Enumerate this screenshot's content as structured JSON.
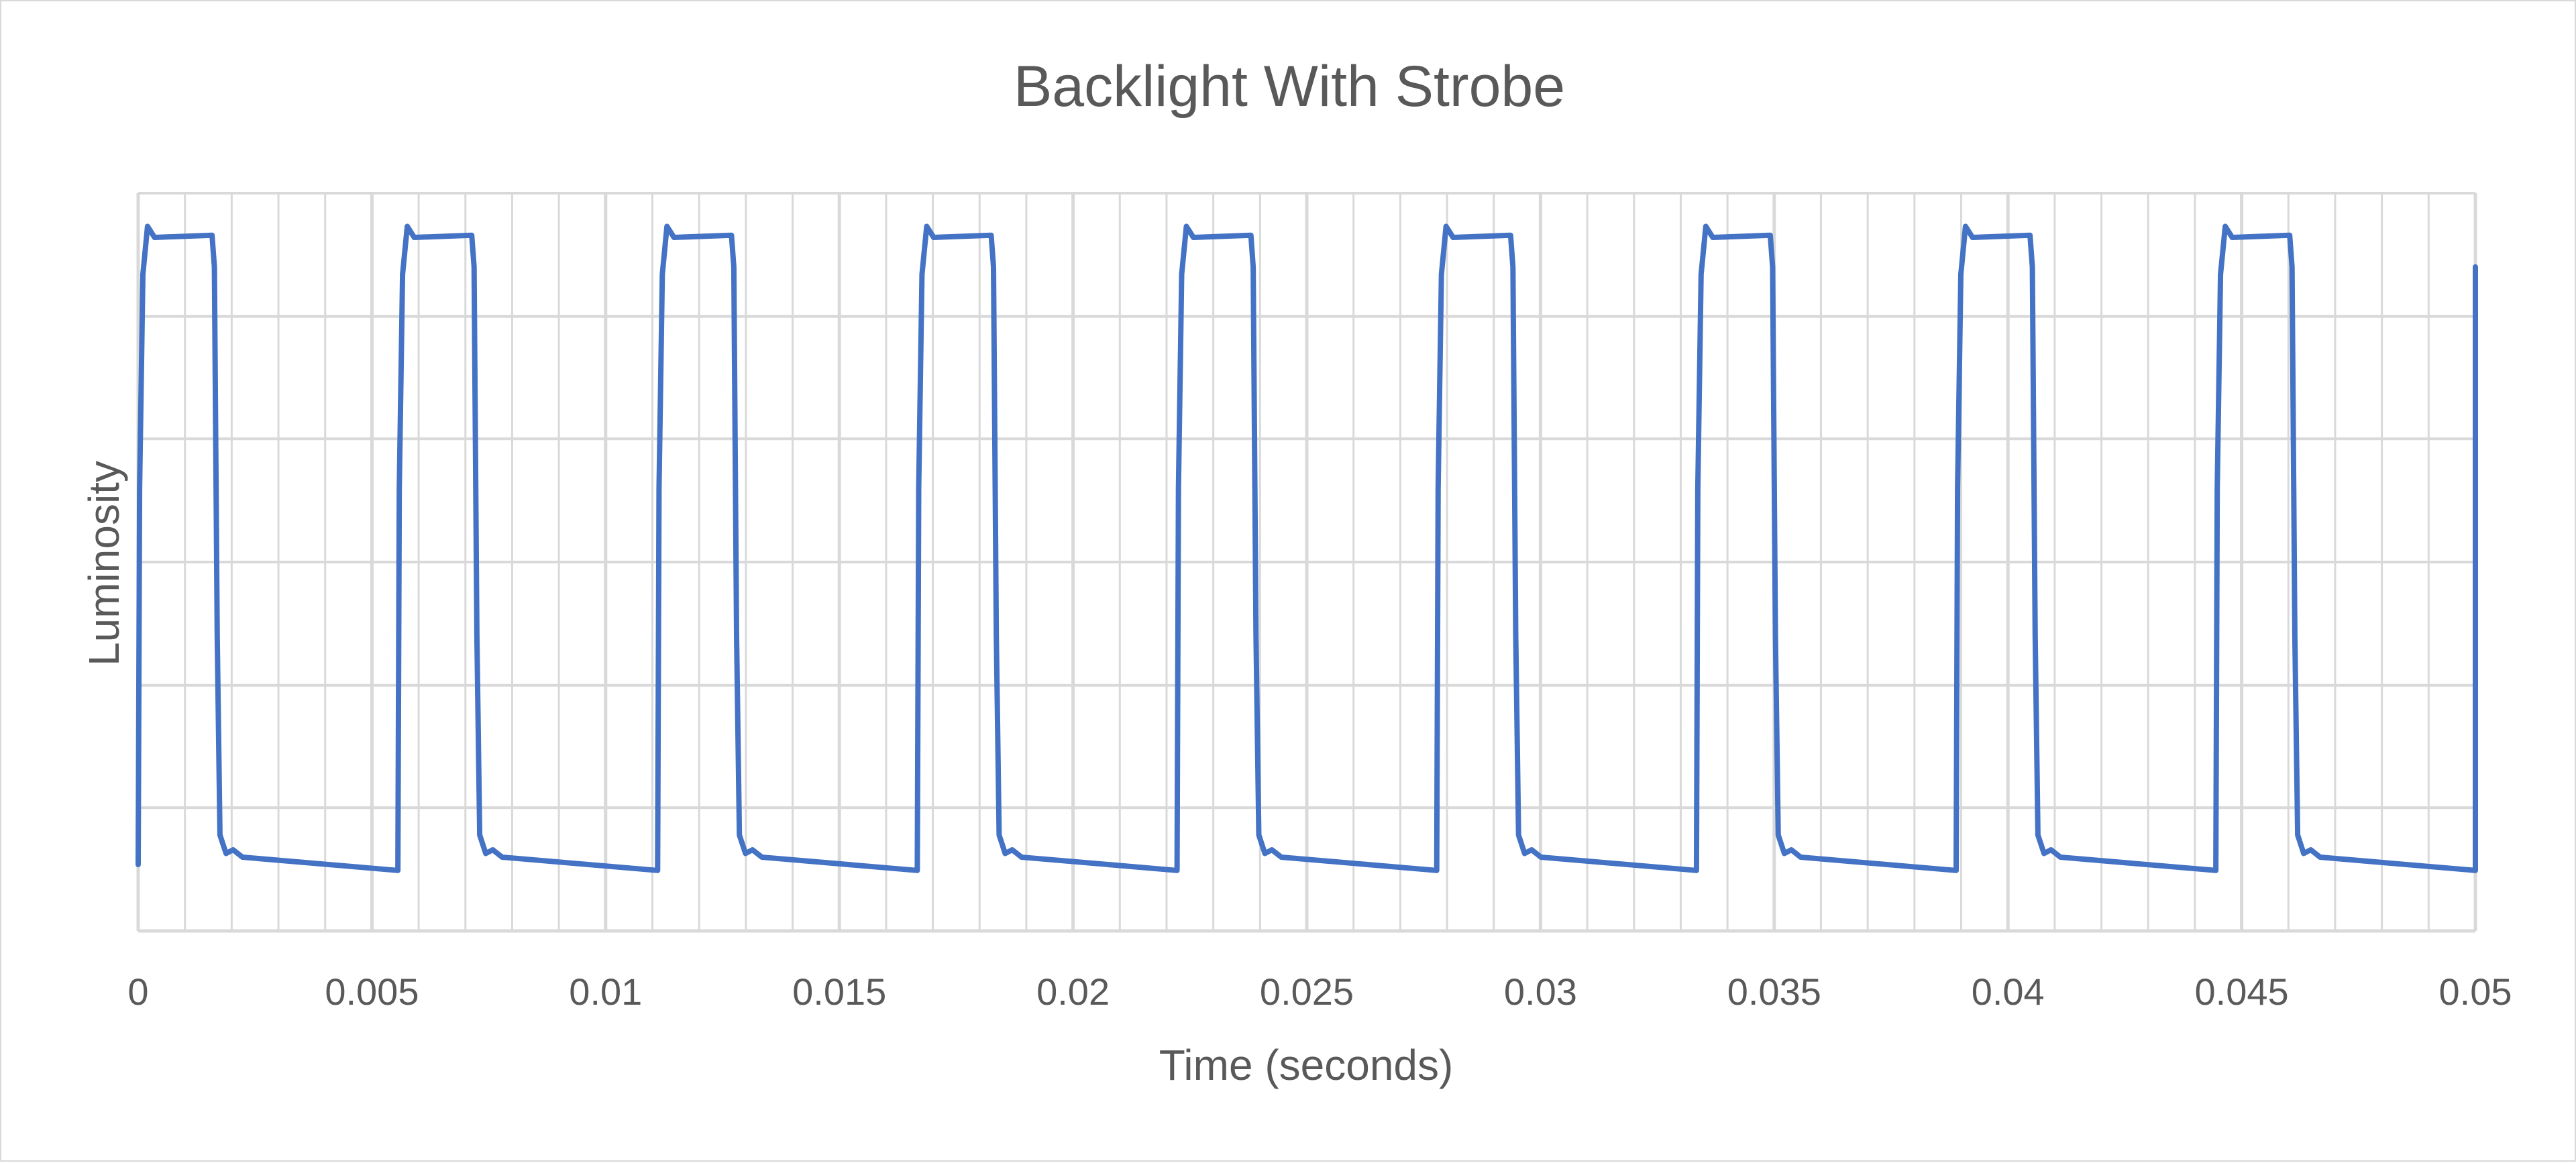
{
  "chart_data": {
    "type": "line",
    "title": "Backlight With Strobe",
    "xlabel": "Time (seconds)",
    "ylabel": "Luminosity",
    "xlim": [
      0,
      0.05
    ],
    "ylim": [
      0,
      1
    ],
    "x_major_ticks": [
      0,
      0.005,
      0.01,
      0.015,
      0.02,
      0.025,
      0.03,
      0.035,
      0.04,
      0.045,
      0.05
    ],
    "x_tick_labels": [
      "0",
      "0.005",
      "0.01",
      "0.015",
      "0.02",
      "0.025",
      "0.03",
      "0.035",
      "0.04",
      "0.045",
      "0.05"
    ],
    "x_minor_step": 0.001,
    "y_gridlines": [
      0.167,
      0.333,
      0.5,
      0.667,
      0.833,
      1.0
    ],
    "y_tick_labels": [],
    "grid": true,
    "legend": "none",
    "line_color": "#4472c4",
    "gridline_color": "#d9d9d9",
    "series": [
      {
        "period": 0.005556,
        "pulse_width": 0.00163,
        "high_level": 0.94,
        "overshoot_level": 0.955,
        "low_level_start": 0.1,
        "low_level_end": 0.082,
        "undershoot_level": 0.12,
        "cycles": 9,
        "start_level": 0.09
      }
    ]
  }
}
